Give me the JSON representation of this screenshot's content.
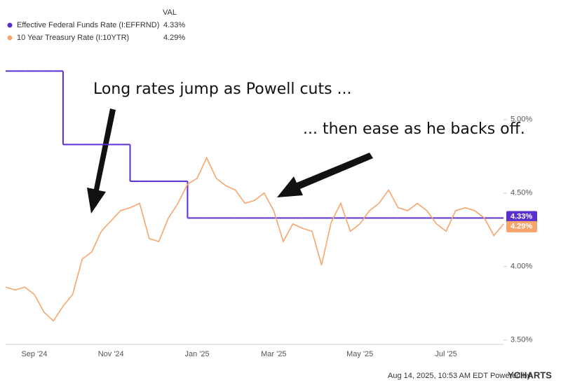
{
  "chart_data": {
    "type": "line",
    "legend_header": "VAL",
    "annotations": [
      "Long rates jump as Powell cuts ...",
      "... then ease as he backs off."
    ],
    "footer": "Aug 14, 2025, 10:53 AM EDT Powered by",
    "brand": "YCHARTS",
    "categories": [
      null,
      null,
      null,
      "Sep '24",
      null,
      null,
      null,
      null,
      null,
      null,
      null,
      "Nov '24",
      null,
      null,
      null,
      null,
      null,
      null,
      null,
      null,
      "Jan '25",
      null,
      null,
      null,
      null,
      null,
      null,
      null,
      "Mar '25",
      null,
      null,
      null,
      null,
      null,
      null,
      null,
      null,
      "May '25",
      null,
      null,
      null,
      null,
      null,
      null,
      null,
      null,
      "Jul '25",
      null,
      null,
      null,
      null,
      null,
      null
    ],
    "series": [
      {
        "name": "Effective Federal Funds Rate (I:EFFRND)",
        "color": "#5a2fd0",
        "step": true,
        "latest_label": "4.33%",
        "values": [
          5.33,
          5.33,
          5.33,
          5.33,
          5.33,
          5.33,
          4.83,
          4.83,
          4.83,
          4.83,
          4.83,
          4.83,
          4.83,
          4.58,
          4.58,
          4.58,
          4.58,
          4.58,
          4.58,
          4.33,
          4.33,
          4.33,
          4.33,
          4.33,
          4.33,
          4.33,
          4.33,
          4.33,
          4.33,
          4.33,
          4.33,
          4.33,
          4.33,
          4.33,
          4.33,
          4.33,
          4.33,
          4.33,
          4.33,
          4.33,
          4.33,
          4.33,
          4.33,
          4.33,
          4.33,
          4.33,
          4.33,
          4.33,
          4.33,
          4.33,
          4.33,
          4.33,
          4.33
        ]
      },
      {
        "name": "10 Year Treasury Rate (I:10YTR)",
        "color": "#f7a56b",
        "step": false,
        "latest_label": "4.29%",
        "values": [
          3.86,
          3.84,
          3.86,
          3.81,
          3.69,
          3.63,
          3.73,
          3.81,
          4.05,
          4.1,
          4.24,
          4.31,
          4.38,
          4.4,
          4.43,
          4.19,
          4.17,
          4.33,
          4.43,
          4.56,
          4.6,
          4.74,
          4.6,
          4.55,
          4.52,
          4.43,
          4.45,
          4.5,
          4.38,
          4.17,
          4.29,
          4.26,
          4.24,
          4.01,
          4.3,
          4.43,
          4.24,
          4.29,
          4.38,
          4.43,
          4.52,
          4.4,
          4.38,
          4.43,
          4.38,
          4.29,
          4.24,
          4.38,
          4.4,
          4.38,
          4.33,
          4.21,
          4.29
        ]
      }
    ],
    "ylim": [
      3.47,
      5.48
    ],
    "yticks": [
      {
        "value": 3.5,
        "label": "3.50%"
      },
      {
        "value": 4,
        "label": "4.00%"
      },
      {
        "value": 4.5,
        "label": "4.50%"
      },
      {
        "value": 5,
        "label": "5.00%"
      }
    ],
    "grid": false
  }
}
